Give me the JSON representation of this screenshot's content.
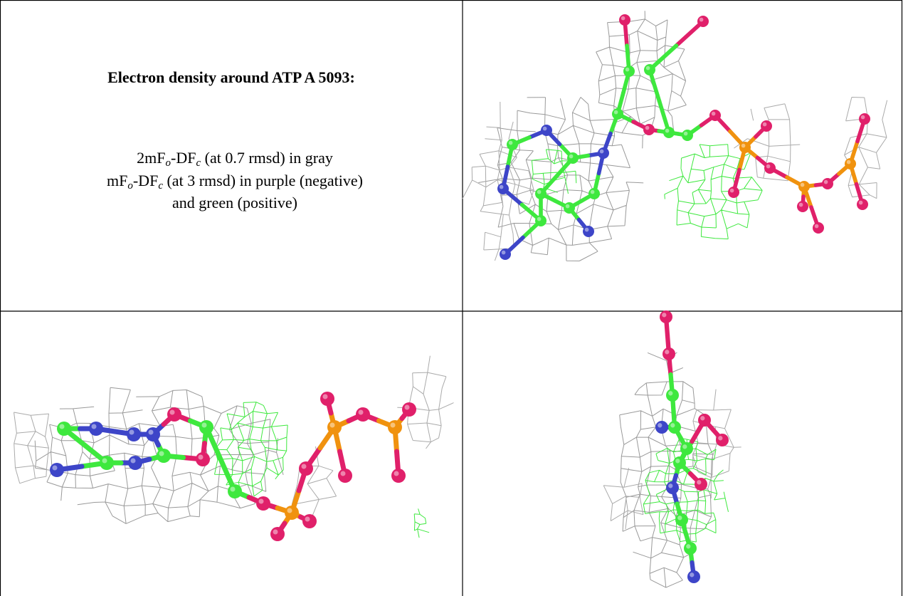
{
  "header": {
    "title": "Electron density around ATP A 5093:"
  },
  "legend": {
    "lines": [
      [
        "2mF",
        "o",
        "-DF",
        "c",
        " (at 0.7 rmsd) in gray"
      ],
      [
        "mF",
        "o",
        "-DF",
        "c",
        " (at 3 rmsd) in purple (negative)"
      ],
      [
        "and green (positive)"
      ]
    ]
  }
}
